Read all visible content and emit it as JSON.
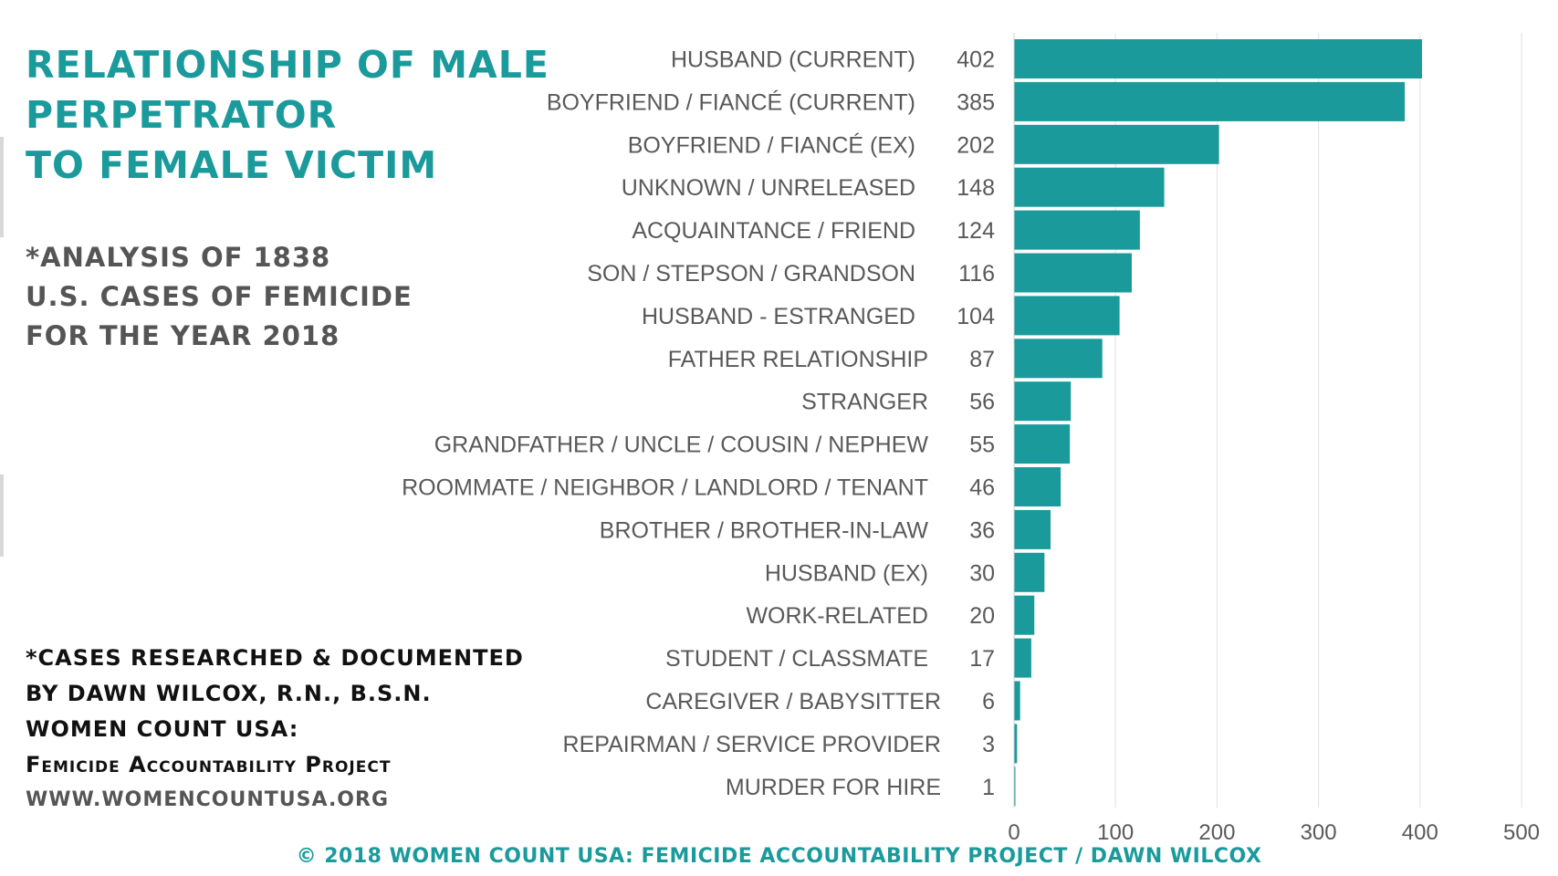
{
  "title_lines": [
    "RELATIONSHIP OF MALE",
    "PERPETRATOR",
    "TO FEMALE VICTIM"
  ],
  "subtitle_lines": [
    "*ANALYSIS OF 1838",
    "U.S. CASES OF FEMICIDE",
    "FOR THE YEAR 2018"
  ],
  "credits": {
    "line1": "*CASES RESEARCHED & DOCUMENTED",
    "line2": "BY DAWN WILCOX, R.N., B.S.N.",
    "line3": "WOMEN COUNT USA:",
    "line4": "Femicide Accountability Project",
    "url": "WWW.WOMENCOUNTUSA.ORG"
  },
  "footer": "© 2018 WOMEN COUNT USA: FEMICIDE ACCOUNTABILITY PROJECT / DAWN WILCOX",
  "colors": {
    "accent": "#1b9a9c",
    "bar": "#1b9a9c",
    "label": "#595959",
    "grid": "#e6e6e6"
  },
  "chart_data": {
    "type": "bar",
    "orientation": "horizontal",
    "categories": [
      "HUSBAND (CURRENT)",
      "BOYFRIEND / FIANCÉ (CURRENT)",
      "BOYFRIEND / FIANCÉ (EX)",
      "UNKNOWN / UNRELEASED",
      "ACQUAINTANCE / FRIEND",
      "SON / STEPSON / GRANDSON",
      "HUSBAND - ESTRANGED",
      "FATHER RELATIONSHIP",
      "STRANGER",
      "GRANDFATHER / UNCLE / COUSIN / NEPHEW",
      "ROOMMATE / NEIGHBOR / LANDLORD / TENANT",
      "BROTHER / BROTHER-IN-LAW",
      "HUSBAND (EX)",
      "WORK-RELATED",
      "STUDENT / CLASSMATE",
      "CAREGIVER / BABYSITTER",
      "REPAIRMAN / SERVICE PROVIDER",
      "MURDER FOR HIRE"
    ],
    "values": [
      402,
      385,
      202,
      148,
      124,
      116,
      104,
      87,
      56,
      55,
      46,
      36,
      30,
      20,
      17,
      6,
      3,
      1
    ],
    "xlim": [
      0,
      500
    ],
    "xticks": [
      0,
      100,
      200,
      300,
      400,
      500
    ],
    "grid": true,
    "data_labels": true
  }
}
